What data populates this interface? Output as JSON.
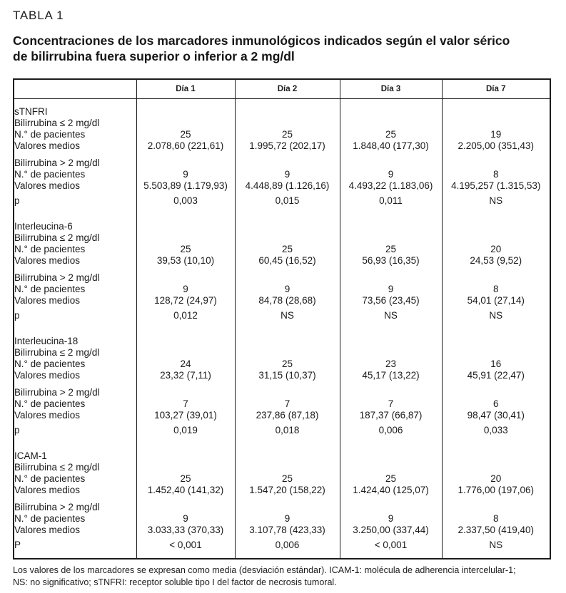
{
  "page": {
    "table_label": "TABLA 1",
    "title": "Concentraciones de los marcadores inmunológicos indicados según el valor sérico de bilirrubina fuera superior o inferior a 2 mg/dl",
    "footnote": {
      "lines": [
        "Los valores de los marcadores se expresan como media (desviación estándar). ICAM-1: molécula de adherencia intercelular-1;",
        "NS: no significativo; sTNFRI: receptor soluble tipo I del factor de necrosis tumoral."
      ]
    }
  },
  "table": {
    "columns": [
      "",
      "Día 1",
      "Día 2",
      "Día 3",
      "Día 7"
    ],
    "row_labels": {
      "bili_le": "Bilirrubina ≤ 2 mg/dl",
      "bili_gt": "Bilirrubina > 2 mg/dl",
      "patients": "N.° de pacientes",
      "means": "Valores medios"
    },
    "sections": [
      {
        "name": "sTNFRI",
        "p_label": "p",
        "le": {
          "patients": [
            "25",
            "25",
            "25",
            "19"
          ],
          "means": [
            "2.078,60 (221,61)",
            "1.995,72 (202,17)",
            "1.848,40 (177,30)",
            "2.205,00 (351,43)"
          ]
        },
        "gt": {
          "patients": [
            "9",
            "9",
            "9",
            "8"
          ],
          "means": [
            "5.503,89 (1.179,93)",
            "4.448,89 (1.126,16)",
            "4.493,22 (1.183,06)",
            "4.195,257 (1.315,53)"
          ]
        },
        "p": [
          "0,003",
          "0,015",
          "0,011",
          "NS"
        ]
      },
      {
        "name": "Interleucina-6",
        "p_label": "p",
        "le": {
          "patients": [
            "25",
            "25",
            "25",
            "20"
          ],
          "means": [
            "39,53 (10,10)",
            "60,45 (16,52)",
            "56,93 (16,35)",
            "24,53 (9,52)"
          ]
        },
        "gt": {
          "patients": [
            "9",
            "9",
            "9",
            "8"
          ],
          "means": [
            "128,72 (24,97)",
            "84,78 (28,68)",
            "73,56 (23,45)",
            "54,01 (27,14)"
          ]
        },
        "p": [
          "0,012",
          "NS",
          "NS",
          "NS"
        ]
      },
      {
        "name": "Interleucina-18",
        "p_label": "p",
        "le": {
          "patients": [
            "24",
            "25",
            "23",
            "16"
          ],
          "means": [
            "23,32 (7,11)",
            "31,15 (10,37)",
            "45,17 (13,22)",
            "45,91 (22,47)"
          ]
        },
        "gt": {
          "patients": [
            "7",
            "7",
            "7",
            "6"
          ],
          "means": [
            "103,27 (39,01)",
            "237,86 (87,18)",
            "187,37 (66,87)",
            "98,47 (30,41)"
          ]
        },
        "p": [
          "0,019",
          "0,018",
          "0,006",
          "0,033"
        ]
      },
      {
        "name": "ICAM-1",
        "p_label": "P",
        "le": {
          "patients": [
            "25",
            "25",
            "25",
            "20"
          ],
          "means": [
            "1.452,40  (141,32)",
            "1.547,20  (158,22)",
            "1.424,40  (125,07)",
            "1.776,00 (197,06)"
          ]
        },
        "gt": {
          "patients": [
            "9",
            "9",
            "9",
            "8"
          ],
          "means": [
            "3.033,33 (370,33)",
            "3.107,78 (423,33)",
            "3.250,00 (337,44)",
            "2.337,50 (419,40)"
          ]
        },
        "p": [
          "< 0,001",
          "0,006",
          "< 0,001",
          "NS"
        ]
      }
    ]
  }
}
